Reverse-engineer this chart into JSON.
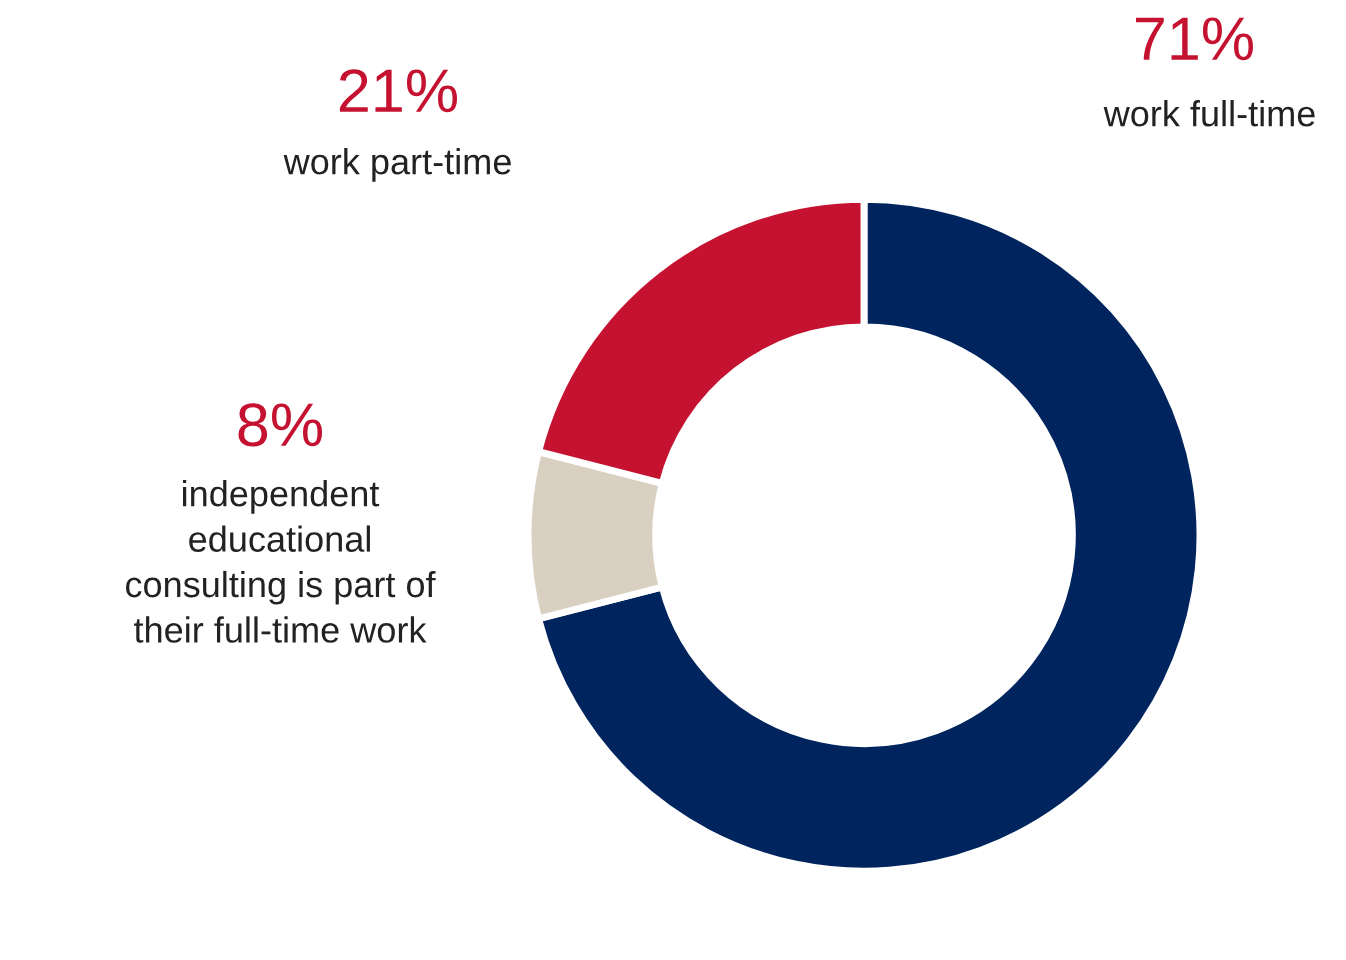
{
  "chart_data": {
    "type": "donut",
    "categories": [
      "work full-time",
      "independent\neducational\nconsulting is part of\ntheir full-time work",
      "work part-time"
    ],
    "values": [
      71,
      8,
      21
    ],
    "colors": [
      "#00245d",
      "#d9d0c1",
      "#c41230"
    ],
    "value_labels": [
      "71%",
      "8%",
      "21%"
    ],
    "legend": false
  }
}
